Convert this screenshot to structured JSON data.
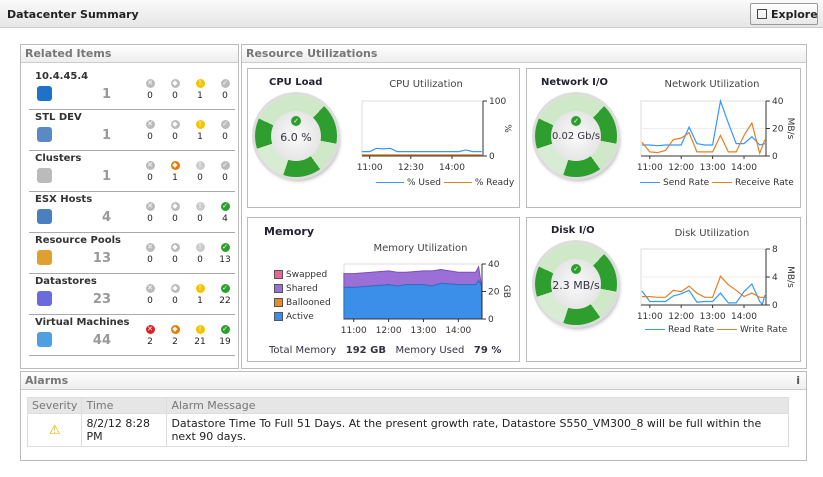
{
  "header": {
    "title": "Datacenter Summary",
    "explore_label": "Explore"
  },
  "related": {
    "title": "Related Items",
    "items": [
      {
        "name": "10.4.45.4",
        "icon": "vcenter-icon",
        "count": "1",
        "status": [
          "0",
          "0",
          "1",
          "0"
        ],
        "active": [
          false,
          false,
          true,
          false
        ]
      },
      {
        "name": "STL DEV",
        "icon": "datacenter-building-icon",
        "count": "1",
        "status": [
          "0",
          "0",
          "1",
          "0"
        ],
        "active": [
          false,
          false,
          true,
          false
        ]
      },
      {
        "name": "Clusters",
        "icon": "cluster-icon",
        "count": "1",
        "status": [
          "0",
          "1",
          "0",
          "0"
        ],
        "active": [
          false,
          true,
          false,
          false
        ]
      },
      {
        "name": "ESX Hosts",
        "icon": "esx-host-icon",
        "count": "4",
        "status": [
          "0",
          "0",
          "0",
          "4"
        ],
        "active": [
          false,
          false,
          false,
          true
        ]
      },
      {
        "name": "Resource Pools",
        "icon": "resource-pool-icon",
        "count": "13",
        "status": [
          "0",
          "0",
          "0",
          "13"
        ],
        "active": [
          false,
          false,
          false,
          true
        ]
      },
      {
        "name": "Datastores",
        "icon": "datastore-icon",
        "count": "23",
        "status": [
          "0",
          "0",
          "1",
          "22"
        ],
        "active": [
          false,
          false,
          true,
          true
        ]
      },
      {
        "name": "Virtual Machines",
        "icon": "virtual-machine-icon",
        "count": "44",
        "status": [
          "2",
          "2",
          "21",
          "19"
        ],
        "active": [
          true,
          true,
          true,
          true
        ]
      }
    ]
  },
  "resources": {
    "title": "Resource Utilizations",
    "cpu": {
      "title": "CPU Load",
      "value": "6.0 %",
      "chart_title": "CPU Utilization"
    },
    "network": {
      "title": "Network I/O",
      "value": "0.02 Gb/s",
      "chart_title": "Network Utilization"
    },
    "memory": {
      "title": "Memory",
      "chart_title": "Memory Utilization",
      "total_label": "Total Memory",
      "total_value": "192 GB",
      "used_label": "Memory Used",
      "used_value": "79 %",
      "legend": [
        "Swapped",
        "Shared",
        "Ballooned",
        "Active"
      ]
    },
    "disk": {
      "title": "Disk I/O",
      "value": "2.3 MB/s",
      "chart_title": "Disk Utilization"
    }
  },
  "colors": {
    "blue": "#3399ff",
    "orange": "#e67e22",
    "ok": "#2ca02c",
    "warn": "#f5c400",
    "critical": "#e02020",
    "fatal": "#ee7700",
    "shared": "#9b6fd6",
    "active": "#3b8fe8",
    "swapped": "#f06292",
    "ballooned": "#e8892b"
  },
  "chart_data": [
    {
      "type": "line",
      "title": "CPU Utilization",
      "ylabel": "%",
      "ylim": [
        0,
        100
      ],
      "yticks": [
        "100",
        "0"
      ],
      "xticks": [
        "11:00",
        "12:30",
        "14:00"
      ],
      "series": [
        {
          "name": "% Used",
          "x": [
            "10:43",
            "11:00",
            "11:15",
            "11:30",
            "11:45",
            "12:00",
            "12:30",
            "13:00",
            "13:30",
            "14:00",
            "14:15",
            "14:30",
            "14:45",
            "15:05"
          ],
          "values": [
            8,
            8,
            14,
            13,
            14,
            8,
            8,
            8,
            8,
            8,
            8,
            11,
            8,
            8
          ]
        },
        {
          "name": "% Ready",
          "x": [
            "10:43",
            "15:05"
          ],
          "values": [
            2,
            2
          ]
        }
      ]
    },
    {
      "type": "line",
      "title": "Network Utilization",
      "ylabel": "MB/s",
      "ylim": [
        0,
        40
      ],
      "yticks": [
        "40",
        "20",
        "0"
      ],
      "xticks": [
        "11:00",
        "12:00",
        "13:00",
        "14:00"
      ],
      "series": [
        {
          "name": "Send Rate",
          "x": [
            "10:45",
            "11:00",
            "11:15",
            "11:30",
            "11:45",
            "12:00",
            "12:15",
            "12:30",
            "12:45",
            "13:00",
            "13:15",
            "13:30",
            "13:45",
            "14:00",
            "14:15",
            "14:30",
            "14:40"
          ],
          "values": [
            8,
            8,
            7.5,
            8,
            8,
            8,
            21,
            9,
            8,
            8,
            40,
            24,
            9,
            9,
            14,
            8,
            9
          ]
        },
        {
          "name": "Receive Rate",
          "x": [
            "10:45",
            "11:00",
            "11:15",
            "11:30",
            "11:45",
            "12:00",
            "12:15",
            "12:30",
            "12:45",
            "13:00",
            "13:15",
            "13:30",
            "13:45",
            "14:00",
            "14:15",
            "14:30",
            "14:40"
          ],
          "values": [
            10,
            3,
            2.5,
            4,
            12,
            13,
            17,
            3,
            3,
            3,
            15,
            3,
            3,
            15,
            24,
            2,
            12
          ]
        }
      ]
    },
    {
      "type": "area",
      "title": "Memory Utilization",
      "ylabel": "GB",
      "ylim": [
        0,
        40
      ],
      "yticks": [
        "40",
        "20",
        "0"
      ],
      "xticks": [
        "11:00",
        "12:00",
        "13:00",
        "14:00"
      ],
      "series": [
        {
          "name": "Active",
          "x": [
            "10:43",
            "11:00",
            "11:30",
            "12:00",
            "12:15",
            "12:30",
            "13:00",
            "13:15",
            "13:30",
            "14:00",
            "14:15",
            "14:30",
            "14:35",
            "14:40"
          ],
          "values": [
            23,
            23,
            24,
            25,
            24,
            25,
            25,
            24,
            26,
            25,
            25,
            25,
            28,
            24
          ]
        },
        {
          "name": "Shared",
          "x": [
            "10:43",
            "11:00",
            "11:30",
            "12:00",
            "12:15",
            "12:30",
            "13:00",
            "13:15",
            "13:30",
            "14:00",
            "14:15",
            "14:30",
            "14:35",
            "14:40"
          ],
          "values": [
            10,
            10,
            10,
            10,
            10,
            9,
            10,
            11,
            10,
            9,
            9,
            9,
            10,
            0
          ]
        },
        {
          "name": "Ballooned",
          "x": [],
          "values": []
        },
        {
          "name": "Swapped",
          "x": [],
          "values": []
        }
      ]
    },
    {
      "type": "line",
      "title": "Disk Utilization",
      "ylabel": "MB/s",
      "ylim": [
        0,
        8
      ],
      "yticks": [
        "8",
        "4",
        "0"
      ],
      "xticks": [
        "11:00",
        "12:00",
        "13:00",
        "14:00"
      ],
      "series": [
        {
          "name": "Read Rate",
          "x": [
            "10:45",
            "11:00",
            "11:15",
            "11:30",
            "11:45",
            "12:00",
            "12:15",
            "12:30",
            "12:45",
            "13:00",
            "13:15",
            "13:30",
            "13:45",
            "14:00",
            "14:15",
            "14:30",
            "14:35",
            "14:40"
          ],
          "values": [
            2,
            0.5,
            0.5,
            0.5,
            1.3,
            1.6,
            2.1,
            0.4,
            0.5,
            0.5,
            1.7,
            0.3,
            0.3,
            1.9,
            3,
            0.5,
            0.1,
            1.4
          ]
        },
        {
          "name": "Write Rate",
          "x": [
            "10:45",
            "11:00",
            "11:15",
            "11:30",
            "11:45",
            "12:00",
            "12:15",
            "12:30",
            "12:45",
            "13:00",
            "13:15",
            "13:30",
            "13:45",
            "14:00",
            "14:15",
            "14:30",
            "14:40"
          ],
          "values": [
            1.2,
            1.2,
            1.1,
            1.1,
            2.1,
            1.9,
            2.7,
            1.7,
            1.1,
            1.1,
            4.1,
            2.9,
            2.1,
            1.2,
            1.7,
            1.1,
            1.1
          ]
        }
      ]
    }
  ],
  "alarms": {
    "title": "Alarms",
    "info": "i",
    "columns": [
      "Severity",
      "Time",
      "Alarm Message"
    ],
    "rows": [
      {
        "severity": "warning",
        "time": "8/2/12 8:28 PM",
        "message": "Datastore Time To Full 51 Days. At the present growth rate, Datastore S550_VM300_8 will be full within the next 90 days."
      }
    ]
  }
}
